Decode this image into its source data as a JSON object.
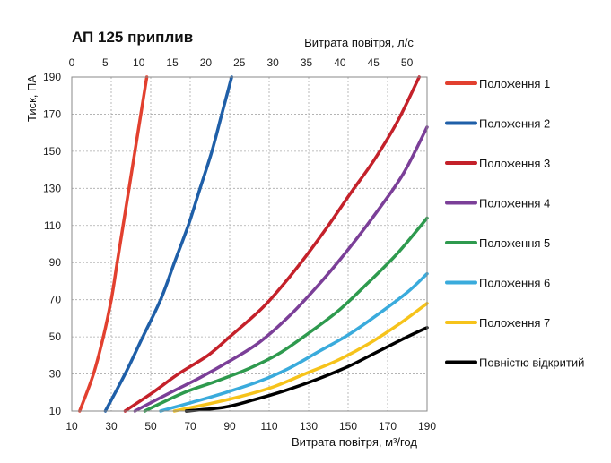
{
  "chart_data": {
    "type": "line",
    "title": "АП 125 приплив",
    "xlabel": "Витрата  повітря, м³/год",
    "x2label": "Витрата  повітря, л/с",
    "ylabel": "Тиск, ПА",
    "xlim": [
      10,
      190
    ],
    "ylim": [
      10,
      190
    ],
    "x2lim": [
      0,
      53
    ],
    "xticks": [
      10,
      30,
      50,
      70,
      90,
      110,
      130,
      150,
      170,
      190
    ],
    "yticks": [
      10,
      30,
      50,
      70,
      90,
      110,
      130,
      150,
      170,
      190
    ],
    "x2ticks": [
      0,
      5,
      10,
      15,
      20,
      25,
      30,
      35,
      40,
      45,
      50
    ],
    "grid": true,
    "legend_position": "right",
    "series": [
      {
        "name": "Положення 1",
        "color": "#e2402f",
        "points": [
          [
            14,
            10
          ],
          [
            21,
            30
          ],
          [
            26,
            50
          ],
          [
            30,
            70
          ],
          [
            33,
            90
          ],
          [
            36,
            110
          ],
          [
            39,
            130
          ],
          [
            42,
            150
          ],
          [
            45,
            170
          ],
          [
            48,
            190
          ]
        ]
      },
      {
        "name": "Положення 2",
        "color": "#1f5fa8",
        "points": [
          [
            27,
            10
          ],
          [
            37,
            30
          ],
          [
            46,
            50
          ],
          [
            55,
            70
          ],
          [
            62,
            90
          ],
          [
            69,
            110
          ],
          [
            75,
            130
          ],
          [
            81,
            150
          ],
          [
            86,
            170
          ],
          [
            91,
            190
          ]
        ]
      },
      {
        "name": "Положення 3",
        "color": "#c4212a",
        "points": [
          [
            37,
            10
          ],
          [
            51,
            20
          ],
          [
            64,
            30
          ],
          [
            79,
            40
          ],
          [
            90,
            50
          ],
          [
            106,
            65
          ],
          [
            117,
            78
          ],
          [
            129,
            94
          ],
          [
            140,
            110
          ],
          [
            151,
            127
          ],
          [
            163,
            145
          ],
          [
            175,
            166
          ],
          [
            186,
            190
          ]
        ]
      },
      {
        "name": "Положення 4",
        "color": "#7b3f98",
        "points": [
          [
            42,
            10
          ],
          [
            60,
            20
          ],
          [
            75,
            28
          ],
          [
            90,
            37
          ],
          [
            105,
            47
          ],
          [
            120,
            61
          ],
          [
            135,
            78
          ],
          [
            150,
            97
          ],
          [
            165,
            118
          ],
          [
            178,
            138
          ],
          [
            190,
            163
          ]
        ]
      },
      {
        "name": "Положення 5",
        "color": "#2e9a4e",
        "points": [
          [
            47,
            10
          ],
          [
            67,
            20
          ],
          [
            83,
            26
          ],
          [
            100,
            33
          ],
          [
            115,
            41
          ],
          [
            130,
            52
          ],
          [
            145,
            64
          ],
          [
            160,
            79
          ],
          [
            175,
            95
          ],
          [
            190,
            114
          ]
        ]
      },
      {
        "name": "Положення 6",
        "color": "#3aabdc",
        "points": [
          [
            55,
            10
          ],
          [
            72,
            15
          ],
          [
            88,
            20
          ],
          [
            105,
            26
          ],
          [
            120,
            33
          ],
          [
            135,
            42
          ],
          [
            150,
            51
          ],
          [
            165,
            62
          ],
          [
            180,
            74
          ],
          [
            190,
            84
          ]
        ]
      },
      {
        "name": "Положення 7",
        "color": "#f6c31b",
        "points": [
          [
            62,
            10
          ],
          [
            80,
            14
          ],
          [
            96,
            18
          ],
          [
            112,
            23
          ],
          [
            128,
            30
          ],
          [
            144,
            37
          ],
          [
            160,
            46
          ],
          [
            176,
            57
          ],
          [
            190,
            68
          ]
        ]
      },
      {
        "name": "Повністю відкритий",
        "color": "#000000",
        "points": [
          [
            68,
            10
          ],
          [
            87,
            12
          ],
          [
            102,
            16
          ],
          [
            118,
            21
          ],
          [
            134,
            27
          ],
          [
            150,
            34
          ],
          [
            165,
            42
          ],
          [
            180,
            50
          ],
          [
            190,
            55
          ]
        ]
      }
    ]
  }
}
